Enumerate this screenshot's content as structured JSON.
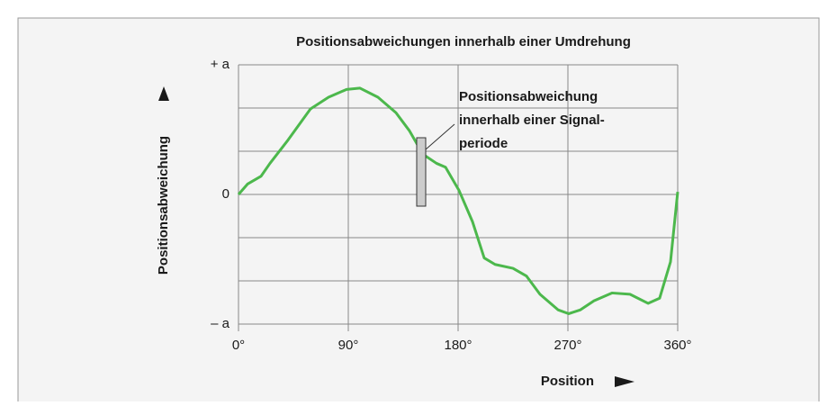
{
  "chart_data": {
    "type": "line",
    "title": "Positionsabweichungen innerhalb einer Umdrehung",
    "x_label": "Position",
    "y_label": "Positionsabweichung",
    "annotation": [
      "Positionsabweichung",
      "innerhalb einer Signal-",
      "periode"
    ],
    "x": [
      0,
      7.4,
      18.4,
      25.8,
      40.6,
      59,
      73.8,
      88.5,
      99.6,
      114.3,
      129.1,
      140.2,
      151.2,
      162.3,
      169.7,
      180.8,
      191.8,
      201.4,
      210.3,
      225,
      236.1,
      247.1,
      261.9,
      270.7,
      280.3,
      291.4,
      306.1,
      320.9,
      335.7,
      345.2,
      354.1,
      360
    ],
    "series": [
      {
        "color": "#4cb84c",
        "values": [
          0,
          0.08,
          0.14,
          0.24,
          0.42,
          0.66,
          0.75,
          0.81,
          0.82,
          0.75,
          0.63,
          0.49,
          0.31,
          0.24,
          0.21,
          0.03,
          -0.21,
          -0.49,
          -0.54,
          -0.57,
          -0.63,
          -0.77,
          -0.89,
          -0.92,
          -0.89,
          -0.82,
          -0.76,
          -0.77,
          -0.84,
          -0.8,
          -0.52,
          0.02
        ]
      }
    ],
    "xlim": [
      0,
      360
    ],
    "xticks": [
      {
        "value": 0,
        "label": "0°"
      },
      {
        "value": 90,
        "label": "90°"
      },
      {
        "value": 180,
        "label": "180°"
      },
      {
        "value": 270,
        "label": "270°"
      },
      {
        "value": 360,
        "label": "360°"
      }
    ],
    "ylim": [
      -1,
      1
    ],
    "yticks": [
      {
        "value": 1,
        "label": "+ a"
      },
      0,
      {
        "value": -1,
        "label": "– a"
      }
    ],
    "yminor": [
      0.667,
      0.333,
      -0.333,
      -0.667
    ],
    "grid": true
  }
}
